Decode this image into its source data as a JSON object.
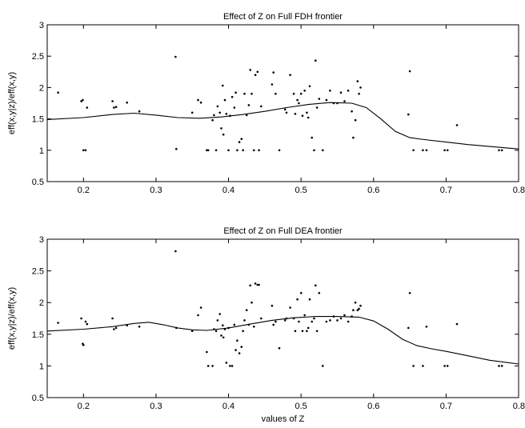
{
  "chart_data": [
    {
      "type": "scatter",
      "title": "Effect of Z on Full FDH frontier",
      "xlabel": "",
      "ylabel": "eff(x,y|z)/eff(x,y)",
      "xlim": [
        0.15,
        0.8
      ],
      "ylim": [
        0.5,
        3
      ],
      "xticks": [
        0.2,
        0.3,
        0.4,
        0.5,
        0.6,
        0.7,
        0.8
      ],
      "yticks": [
        0.5,
        1,
        1.5,
        2,
        2.5,
        3
      ],
      "xtick_labels": [
        "0.2",
        "0.3",
        "0.4",
        "0.5",
        "0.6",
        "0.7",
        "0.8"
      ],
      "ytick_labels": [
        "0.5",
        "1",
        "1.5",
        "2",
        "2.5",
        "3"
      ],
      "grid": false,
      "series": [
        {
          "kind": "points",
          "x": [
            0.165,
            0.197,
            0.199,
            0.2,
            0.203,
            0.205,
            0.24,
            0.242,
            0.245,
            0.26,
            0.277,
            0.327,
            0.328,
            0.35,
            0.358,
            0.362,
            0.37,
            0.372,
            0.378,
            0.38,
            0.383,
            0.385,
            0.388,
            0.39,
            0.392,
            0.393,
            0.395,
            0.397,
            0.4,
            0.402,
            0.405,
            0.408,
            0.41,
            0.412,
            0.415,
            0.418,
            0.42,
            0.422,
            0.425,
            0.428,
            0.43,
            0.432,
            0.435,
            0.437,
            0.44,
            0.442,
            0.445,
            0.46,
            0.462,
            0.465,
            0.47,
            0.478,
            0.48,
            0.485,
            0.49,
            0.492,
            0.495,
            0.497,
            0.5,
            0.502,
            0.505,
            0.508,
            0.51,
            0.512,
            0.515,
            0.518,
            0.52,
            0.522,
            0.525,
            0.53,
            0.535,
            0.54,
            0.545,
            0.55,
            0.555,
            0.56,
            0.565,
            0.57,
            0.572,
            0.575,
            0.578,
            0.58,
            0.582,
            0.648,
            0.65,
            0.655,
            0.668,
            0.673,
            0.698,
            0.702,
            0.715,
            0.773,
            0.777
          ],
          "y": [
            1.92,
            1.78,
            1.8,
            1.0,
            1.0,
            1.68,
            1.78,
            1.68,
            1.69,
            1.76,
            1.62,
            2.49,
            1.02,
            1.6,
            1.8,
            1.76,
            1.0,
            1.0,
            1.48,
            1.56,
            1.0,
            1.7,
            1.6,
            1.35,
            2.03,
            1.25,
            1.8,
            1.58,
            1.0,
            1.55,
            1.85,
            1.68,
            1.92,
            1.0,
            1.13,
            1.18,
            1.0,
            1.9,
            1.56,
            1.72,
            2.28,
            1.9,
            1.0,
            2.2,
            2.25,
            1.0,
            1.7,
            2.05,
            2.24,
            1.9,
            1.0,
            1.65,
            1.6,
            2.2,
            1.9,
            1.58,
            1.8,
            1.75,
            1.9,
            1.55,
            1.95,
            1.6,
            1.52,
            2.02,
            1.2,
            1.0,
            2.43,
            1.68,
            1.82,
            1.0,
            1.8,
            1.95,
            1.75,
            1.75,
            1.92,
            1.78,
            1.95,
            1.62,
            1.2,
            1.48,
            2.1,
            1.9,
            2.0,
            1.57,
            2.26,
            1.0,
            1.0,
            1.0,
            1.0,
            1.0,
            1.4,
            1.0,
            1.0
          ]
        },
        {
          "kind": "line",
          "x": [
            0.15,
            0.2,
            0.24,
            0.27,
            0.3,
            0.33,
            0.36,
            0.39,
            0.42,
            0.45,
            0.48,
            0.51,
            0.54,
            0.57,
            0.59,
            0.61,
            0.63,
            0.65,
            0.67,
            0.7,
            0.73,
            0.76,
            0.8
          ],
          "y": [
            1.49,
            1.52,
            1.57,
            1.59,
            1.56,
            1.52,
            1.51,
            1.53,
            1.57,
            1.62,
            1.68,
            1.73,
            1.76,
            1.75,
            1.68,
            1.5,
            1.3,
            1.2,
            1.17,
            1.13,
            1.09,
            1.06,
            1.02
          ]
        }
      ]
    },
    {
      "type": "scatter",
      "title": "Effect of Z on Full DEA frontier",
      "xlabel": "values of Z",
      "ylabel": "eff(x,y|z)/eff(x,y)",
      "xlim": [
        0.15,
        0.8
      ],
      "ylim": [
        0.5,
        3
      ],
      "xticks": [
        0.2,
        0.3,
        0.4,
        0.5,
        0.6,
        0.7,
        0.8
      ],
      "yticks": [
        0.5,
        1,
        1.5,
        2,
        2.5,
        3
      ],
      "xtick_labels": [
        "0.2",
        "0.3",
        "0.4",
        "0.5",
        "0.6",
        "0.7",
        "0.8"
      ],
      "ytick_labels": [
        "0.5",
        "1",
        "1.5",
        "2",
        "2.5",
        "3"
      ],
      "grid": false,
      "series": [
        {
          "kind": "points",
          "x": [
            0.165,
            0.197,
            0.199,
            0.2,
            0.203,
            0.205,
            0.24,
            0.242,
            0.245,
            0.26,
            0.277,
            0.327,
            0.328,
            0.35,
            0.358,
            0.362,
            0.37,
            0.372,
            0.378,
            0.38,
            0.383,
            0.385,
            0.388,
            0.39,
            0.392,
            0.393,
            0.395,
            0.397,
            0.4,
            0.402,
            0.405,
            0.408,
            0.41,
            0.412,
            0.415,
            0.418,
            0.42,
            0.422,
            0.425,
            0.428,
            0.43,
            0.432,
            0.435,
            0.437,
            0.44,
            0.442,
            0.445,
            0.46,
            0.462,
            0.465,
            0.47,
            0.478,
            0.48,
            0.485,
            0.49,
            0.492,
            0.495,
            0.497,
            0.5,
            0.502,
            0.505,
            0.508,
            0.51,
            0.512,
            0.515,
            0.518,
            0.52,
            0.522,
            0.525,
            0.53,
            0.535,
            0.54,
            0.545,
            0.55,
            0.555,
            0.56,
            0.565,
            0.57,
            0.572,
            0.575,
            0.578,
            0.58,
            0.582,
            0.648,
            0.65,
            0.655,
            0.668,
            0.673,
            0.698,
            0.702,
            0.715,
            0.773,
            0.777
          ],
          "y": [
            1.68,
            1.75,
            1.35,
            1.33,
            1.7,
            1.66,
            1.75,
            1.58,
            1.6,
            1.64,
            1.62,
            2.81,
            1.6,
            1.55,
            1.8,
            1.92,
            1.22,
            1.0,
            1.0,
            1.58,
            1.55,
            1.72,
            1.82,
            1.48,
            1.64,
            1.45,
            1.58,
            1.05,
            1.6,
            1.0,
            1.0,
            1.65,
            1.25,
            1.4,
            1.2,
            1.3,
            1.55,
            1.72,
            1.88,
            1.65,
            2.27,
            2.0,
            1.62,
            2.3,
            2.28,
            2.28,
            1.75,
            1.95,
            1.65,
            1.7,
            1.28,
            1.72,
            1.75,
            1.92,
            1.75,
            1.55,
            2.05,
            1.7,
            2.15,
            1.55,
            1.8,
            1.55,
            1.6,
            2.05,
            1.7,
            1.75,
            2.27,
            1.55,
            2.15,
            1.0,
            1.7,
            1.72,
            1.78,
            1.72,
            1.75,
            1.8,
            1.7,
            1.78,
            1.88,
            2.0,
            1.88,
            1.9,
            1.95,
            1.6,
            2.15,
            1.0,
            1.0,
            1.62,
            1.0,
            1.0,
            1.66,
            1.0,
            1.0
          ]
        },
        {
          "kind": "line",
          "x": [
            0.15,
            0.2,
            0.24,
            0.27,
            0.29,
            0.31,
            0.33,
            0.35,
            0.37,
            0.4,
            0.43,
            0.46,
            0.49,
            0.52,
            0.55,
            0.58,
            0.6,
            0.62,
            0.64,
            0.66,
            0.68,
            0.7,
            0.73,
            0.76,
            0.8
          ],
          "y": [
            1.55,
            1.58,
            1.62,
            1.67,
            1.69,
            1.65,
            1.6,
            1.57,
            1.56,
            1.6,
            1.66,
            1.72,
            1.76,
            1.78,
            1.78,
            1.77,
            1.71,
            1.58,
            1.42,
            1.32,
            1.27,
            1.23,
            1.16,
            1.09,
            1.03
          ]
        }
      ]
    }
  ]
}
